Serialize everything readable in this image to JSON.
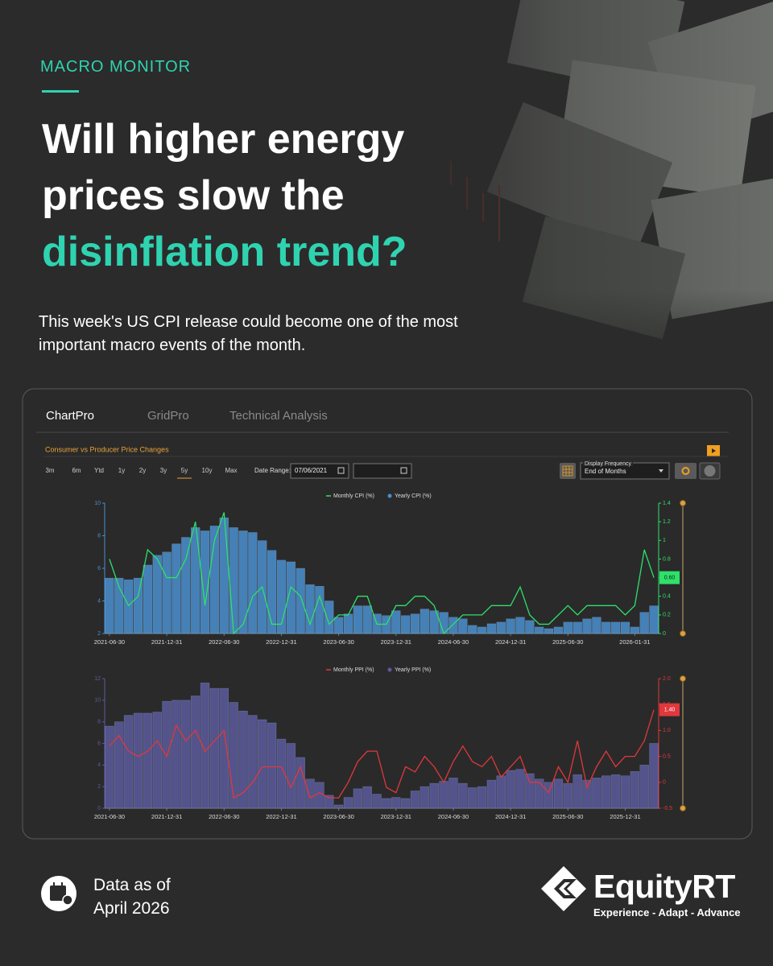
{
  "header": {
    "kicker": "MACRO MONITOR",
    "title": "Will higher energy prices slow the",
    "title_highlight": "disinflation trend?",
    "subtitle": "This week's US CPI release could become one of the most important macro events of the month."
  },
  "panel": {
    "tabs": [
      "ChartPro",
      "GridPro",
      "Technical Analysis"
    ],
    "chart_title": "Consumer vs Producer Price Changes",
    "ranges": [
      "3m",
      "6m",
      "Ytd",
      "1y",
      "2y",
      "3y",
      "5y",
      "10y",
      "Max"
    ],
    "date_range_label": "Date Range:",
    "date_from": "07/06/2021",
    "frequency_label": "Display Frequency",
    "frequency": "End of Months"
  },
  "chart_data": [
    {
      "type": "combo",
      "categories": [
        "2021-06-30",
        null,
        null,
        null,
        null,
        null,
        "2021-12-31",
        null,
        null,
        null,
        null,
        null,
        "2022-06-30",
        null,
        null,
        null,
        null,
        null,
        "2022-12-31",
        null,
        null,
        null,
        null,
        null,
        "2023-06-30",
        null,
        null,
        null,
        null,
        null,
        "2023-12-31",
        null,
        null,
        null,
        null,
        null,
        "2024-06-30",
        null,
        null,
        null,
        null,
        null,
        "2024-12-31",
        null,
        null,
        null,
        null,
        null,
        "2025-06-30",
        null,
        null,
        null,
        null,
        null,
        null,
        "2026-01-31",
        null,
        null
      ],
      "ylim": [
        2,
        10
      ],
      "yticks": [
        2,
        4,
        6,
        8,
        10
      ],
      "y2lim": [
        0,
        1.4
      ],
      "y2ticks": [
        0,
        0.2,
        0.4,
        0.6,
        0.8,
        1,
        1.2,
        1.4
      ],
      "series": [
        {
          "name": "Monthly CPI (%)",
          "type": "line",
          "axis": "y2",
          "color": "#2fe06a",
          "values": [
            0.8,
            0.5,
            0.3,
            0.4,
            0.9,
            0.8,
            0.6,
            0.6,
            0.8,
            1.2,
            0.3,
            1.0,
            1.3,
            0.0,
            0.1,
            0.4,
            0.5,
            0.1,
            0.1,
            0.5,
            0.4,
            0.1,
            0.4,
            0.1,
            0.2,
            0.2,
            0.4,
            0.4,
            0.1,
            0.1,
            0.3,
            0.3,
            0.4,
            0.4,
            0.3,
            0.0,
            0.1,
            0.2,
            0.2,
            0.2,
            0.3,
            0.3,
            0.3,
            0.5,
            0.2,
            0.1,
            0.1,
            0.2,
            0.3,
            0.2,
            0.3,
            0.3,
            0.3,
            0.3,
            0.2,
            0.3,
            0.9,
            0.6
          ],
          "value_labels": [
            null,
            null,
            null,
            null,
            null,
            null,
            null,
            null,
            null,
            null,
            null,
            null,
            null,
            null,
            null,
            null,
            null,
            null,
            null,
            null,
            null,
            null,
            null,
            null,
            null,
            null,
            null,
            null,
            null,
            null,
            null,
            null,
            null,
            null,
            null,
            null,
            null,
            null,
            null,
            null,
            null,
            null,
            null,
            null,
            null,
            null,
            null,
            null,
            null,
            null,
            null,
            null,
            null,
            null,
            null,
            null,
            null,
            "0.60"
          ]
        },
        {
          "name": "Yearly CPI (%)",
          "type": "bar",
          "color": "#4a8fcf",
          "values": [
            5.4,
            5.4,
            5.3,
            5.4,
            6.2,
            6.8,
            7.0,
            7.5,
            7.9,
            8.5,
            8.3,
            8.6,
            9.1,
            8.5,
            8.3,
            8.2,
            7.7,
            7.1,
            6.5,
            6.4,
            6.0,
            5.0,
            4.9,
            4.0,
            3.0,
            3.2,
            3.7,
            3.7,
            3.2,
            3.1,
            3.4,
            3.1,
            3.2,
            3.5,
            3.4,
            3.3,
            3.0,
            2.9,
            2.5,
            2.4,
            2.6,
            2.7,
            2.9,
            3.0,
            2.8,
            2.4,
            2.3,
            2.4,
            2.7,
            2.7,
            2.9,
            3.0,
            2.7,
            2.7,
            2.7,
            2.4,
            3.3,
            3.7
          ]
        }
      ]
    },
    {
      "type": "combo",
      "categories": [
        "2021-06-30",
        null,
        null,
        null,
        null,
        null,
        "2021-12-31",
        null,
        null,
        null,
        null,
        null,
        "2022-06-30",
        null,
        null,
        null,
        null,
        null,
        "2022-12-31",
        null,
        null,
        null,
        null,
        null,
        "2023-06-30",
        null,
        null,
        null,
        null,
        null,
        "2023-12-31",
        null,
        null,
        null,
        null,
        null,
        "2024-06-30",
        null,
        null,
        null,
        null,
        null,
        "2024-12-31",
        null,
        null,
        null,
        null,
        null,
        "2025-06-30",
        null,
        null,
        null,
        null,
        null,
        "2025-12-31",
        null,
        null,
        null
      ],
      "ylim": [
        0,
        12
      ],
      "yticks": [
        0,
        2,
        4,
        6,
        8,
        10,
        12
      ],
      "y2lim": [
        -0.5,
        2.0
      ],
      "y2ticks": [
        -0.5,
        0,
        0.5,
        {
          "value": 1.0,
          "label": "1.0"
        },
        {
          "value": 1.5,
          "label": "1.5"
        },
        {
          "value": 2.0,
          "label": "2.0"
        }
      ],
      "series": [
        {
          "name": "Monthly PPI (%)",
          "type": "line",
          "axis": "y2",
          "color": "#e0383c",
          "values": [
            0.7,
            0.9,
            0.6,
            0.5,
            0.6,
            0.8,
            0.5,
            1.1,
            0.8,
            1.0,
            0.6,
            0.8,
            1.0,
            -0.3,
            -0.2,
            0.0,
            0.3,
            0.3,
            0.3,
            -0.1,
            0.3,
            -0.3,
            -0.2,
            -0.3,
            -0.3,
            0.0,
            0.4,
            0.6,
            0.6,
            -0.1,
            -0.2,
            0.3,
            0.2,
            0.5,
            0.3,
            0.0,
            0.4,
            0.7,
            0.4,
            0.3,
            0.5,
            0.1,
            0.3,
            0.5,
            0.0,
            0.0,
            -0.2,
            0.3,
            0.0,
            0.8,
            -0.1,
            0.3,
            0.6,
            0.3,
            0.5,
            0.5,
            0.8,
            1.4
          ],
          "value_labels": [
            null,
            null,
            null,
            null,
            null,
            null,
            null,
            null,
            null,
            null,
            null,
            null,
            null,
            null,
            null,
            null,
            null,
            null,
            null,
            null,
            null,
            null,
            null,
            null,
            null,
            null,
            null,
            null,
            null,
            null,
            null,
            null,
            null,
            null,
            null,
            null,
            null,
            null,
            null,
            null,
            null,
            null,
            null,
            null,
            null,
            null,
            null,
            null,
            null,
            null,
            null,
            null,
            null,
            null,
            null,
            null,
            null,
            "1.40"
          ]
        },
        {
          "name": "Yearly PPI (%)",
          "type": "bar",
          "color": "#5d5a9e",
          "values": [
            7.6,
            8.0,
            8.6,
            8.8,
            8.8,
            8.9,
            9.9,
            10.0,
            10.0,
            10.4,
            11.6,
            11.1,
            11.1,
            9.8,
            9.0,
            8.6,
            8.2,
            7.9,
            6.4,
            6.0,
            4.7,
            2.7,
            2.4,
            1.2,
            0.3,
            1.0,
            1.8,
            2.0,
            1.3,
            0.9,
            1.0,
            0.9,
            1.6,
            2.0,
            2.3,
            2.5,
            2.8,
            2.3,
            1.9,
            2.0,
            2.6,
            3.0,
            3.5,
            3.6,
            3.2,
            2.7,
            2.4,
            2.7,
            2.3,
            3.1,
            2.6,
            2.8,
            3.0,
            3.1,
            3.0,
            3.4,
            4.0,
            6.0
          ]
        }
      ]
    }
  ],
  "footer": {
    "data_as_of": "Data as of",
    "date": "April 2026",
    "brand": "EquityRT",
    "tagline": "Experience - Adapt - Advance"
  }
}
